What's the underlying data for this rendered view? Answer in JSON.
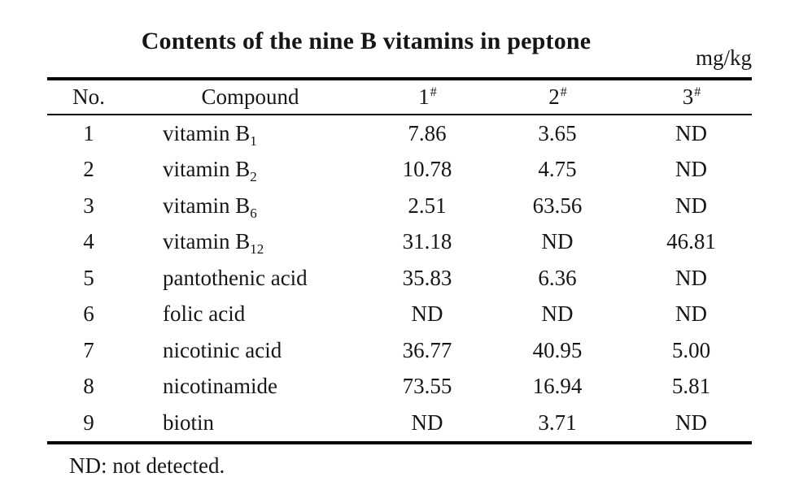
{
  "title": "Contents of the nine B vitamins in peptone",
  "unit": "mg/kg",
  "table": {
    "columns": [
      {
        "label": "No.",
        "sup": ""
      },
      {
        "label": "Compound",
        "sup": ""
      },
      {
        "label": "1",
        "sup": "#"
      },
      {
        "label": "2",
        "sup": "#"
      },
      {
        "label": "3",
        "sup": "#"
      }
    ],
    "rows": [
      {
        "no": "1",
        "name": "vitamin B",
        "sub": "1",
        "c1": "7.86",
        "c2": "3.65",
        "c3": "ND"
      },
      {
        "no": "2",
        "name": "vitamin B",
        "sub": "2",
        "c1": "10.78",
        "c2": "4.75",
        "c3": "ND"
      },
      {
        "no": "3",
        "name": "vitamin B",
        "sub": "6",
        "c1": "2.51",
        "c2": "63.56",
        "c3": "ND"
      },
      {
        "no": "4",
        "name": "vitamin B",
        "sub": "12",
        "c1": "31.18",
        "c2": "ND",
        "c3": "46.81"
      },
      {
        "no": "5",
        "name": "pantothenic acid",
        "sub": "",
        "c1": "35.83",
        "c2": "6.36",
        "c3": "ND"
      },
      {
        "no": "6",
        "name": "folic acid",
        "sub": "",
        "c1": "ND",
        "c2": "ND",
        "c3": "ND"
      },
      {
        "no": "7",
        "name": "nicotinic acid",
        "sub": "",
        "c1": "36.77",
        "c2": "40.95",
        "c3": "5.00"
      },
      {
        "no": "8",
        "name": "nicotinamide",
        "sub": "",
        "c1": "73.55",
        "c2": "16.94",
        "c3": "5.81"
      },
      {
        "no": "9",
        "name": "biotin",
        "sub": "",
        "c1": "ND",
        "c2": "3.71",
        "c3": "ND"
      }
    ]
  },
  "footnote": "ND: not detected."
}
